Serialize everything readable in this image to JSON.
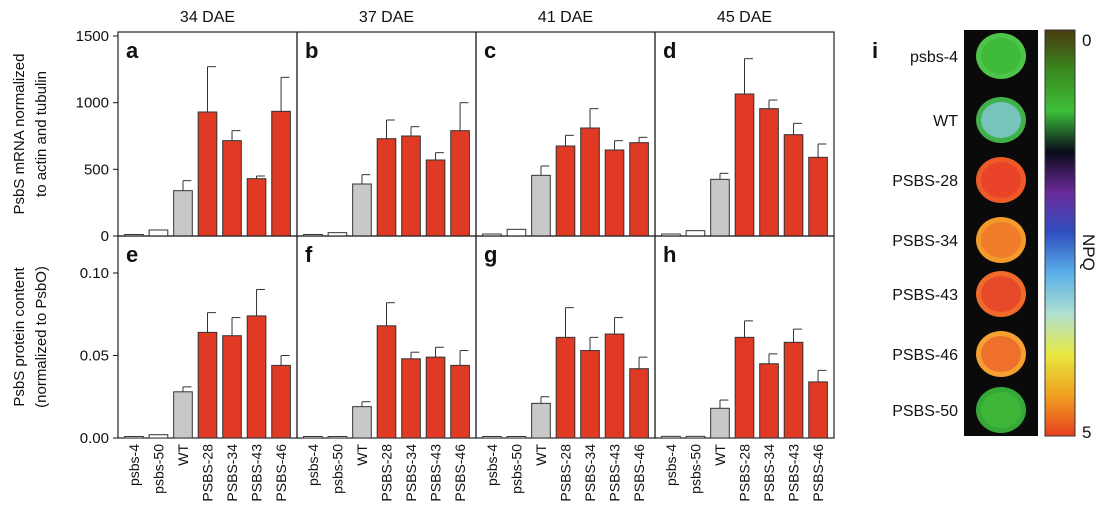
{
  "chart_data": {
    "type": "bar",
    "categories": [
      "psbs-4",
      "psbs-50",
      "WT",
      "PSBS-28",
      "PSBS-34",
      "PSBS-43",
      "PSBS-46"
    ],
    "column_titles": [
      "34 DAE",
      "37 DAE",
      "41 DAE",
      "45 DAE"
    ],
    "bar_colors": [
      "#ffffff",
      "#ffffff",
      "#c8c8c8",
      "#e03a24",
      "#e03a24",
      "#e03a24",
      "#e03a24"
    ],
    "rows": [
      {
        "ylabel": [
          "PsbS mRNA normalized",
          "to actin and tubulin"
        ],
        "ylim": [
          0,
          1500
        ],
        "yticks": [
          0,
          500,
          1000,
          1500
        ],
        "ytick_labels": [
          "0",
          "500",
          "1000",
          "1500"
        ],
        "panels": [
          {
            "label": "a",
            "values": [
              10,
              45,
              340,
              930,
              715,
              430,
              935
            ],
            "errors": [
              3,
              8,
              75,
              340,
              75,
              20,
              255
            ]
          },
          {
            "label": "b",
            "values": [
              10,
              25,
              390,
              730,
              750,
              570,
              790
            ],
            "errors": [
              3,
              5,
              70,
              140,
              70,
              55,
              210
            ]
          },
          {
            "label": "c",
            "values": [
              15,
              50,
              455,
              675,
              810,
              645,
              700
            ],
            "errors": [
              3,
              8,
              70,
              80,
              145,
              70,
              40
            ]
          },
          {
            "label": "d",
            "values": [
              15,
              40,
              425,
              1065,
              955,
              760,
              590
            ],
            "errors": [
              3,
              8,
              45,
              265,
              65,
              85,
              100
            ]
          }
        ]
      },
      {
        "ylabel": [
          "PsbS protein content",
          "(normalized to PsbO)"
        ],
        "ylim": [
          0,
          0.12
        ],
        "yticks": [
          0,
          0.05,
          0.1
        ],
        "ytick_labels": [
          "0.00",
          "0.05",
          "0.10"
        ],
        "panels": [
          {
            "label": "e",
            "values": [
              0.0005,
              0.002,
              0.028,
              0.064,
              0.062,
              0.074,
              0.044
            ],
            "errors": [
              0.0003,
              0.001,
              0.003,
              0.012,
              0.011,
              0.016,
              0.006
            ]
          },
          {
            "label": "f",
            "values": [
              0.0005,
              0.0005,
              0.019,
              0.068,
              0.048,
              0.049,
              0.044
            ],
            "errors": [
              0.0003,
              0.0003,
              0.003,
              0.014,
              0.004,
              0.006,
              0.009
            ]
          },
          {
            "label": "g",
            "values": [
              0.0005,
              0.0005,
              0.021,
              0.061,
              0.053,
              0.063,
              0.042
            ],
            "errors": [
              0.0003,
              0.0003,
              0.004,
              0.018,
              0.008,
              0.01,
              0.007
            ]
          },
          {
            "label": "h",
            "values": [
              0.001,
              0.001,
              0.018,
              0.061,
              0.045,
              0.058,
              0.034
            ],
            "errors": [
              0.0003,
              0.0003,
              0.005,
              0.01,
              0.006,
              0.008,
              0.007
            ]
          }
        ]
      }
    ]
  },
  "ndpq_panel": {
    "label": "i",
    "rows": [
      {
        "name": "psbs-4",
        "fill": "#3fb83a",
        "ring": "#4cc54a"
      },
      {
        "name": "WT",
        "fill": "#7cc6c8",
        "ring": "#3fb04a"
      },
      {
        "name": "PSBS-28",
        "fill": "#e8402a",
        "ring": "#f05a28"
      },
      {
        "name": "PSBS-34",
        "fill": "#ef7a2a",
        "ring": "#f39a2a"
      },
      {
        "name": "PSBS-43",
        "fill": "#e6472a",
        "ring": "#f06a2a"
      },
      {
        "name": "PSBS-46",
        "fill": "#ee6a2a",
        "ring": "#f5a030"
      },
      {
        "name": "PSBS-50",
        "fill": "#3fb83a",
        "ring": "#36a838"
      }
    ],
    "colorbar": {
      "label": "NPQ",
      "min_label": "0",
      "max_label": "5",
      "stops": [
        "#4a3a10",
        "#3a8a1e",
        "#3cbf3a",
        "#0a0a1a",
        "#6a2a9a",
        "#3050c0",
        "#5ab0e8",
        "#b0e0d0",
        "#e8e840",
        "#f0a020",
        "#e84020"
      ]
    }
  }
}
